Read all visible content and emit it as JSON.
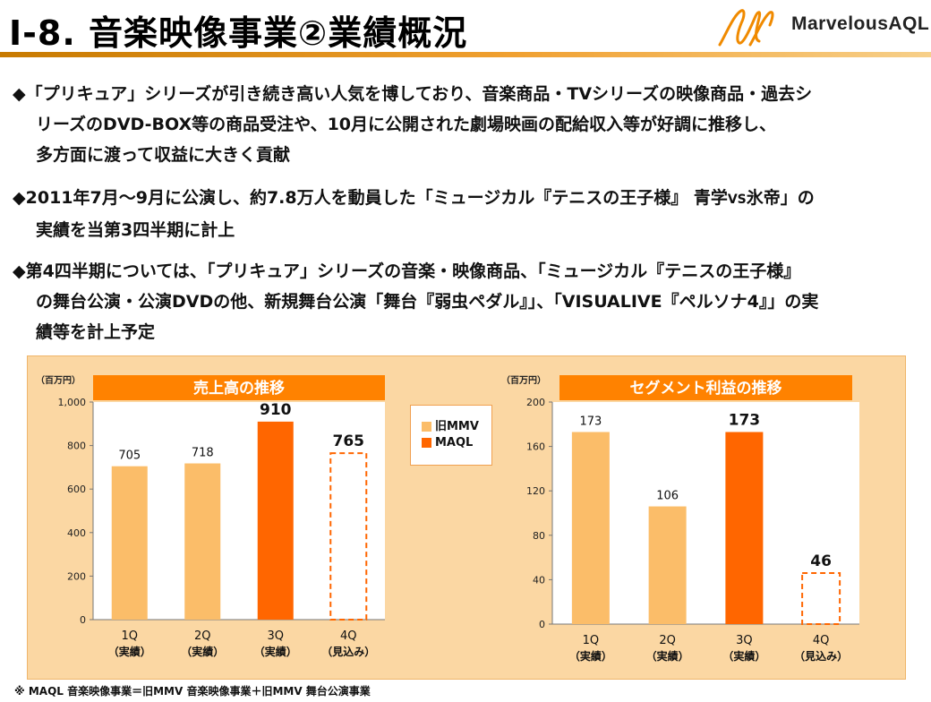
{
  "header": {
    "title": "Ⅰ-8. 音楽映像事業②業績概況",
    "logo_text": "MarvelousAQL"
  },
  "bullets": [
    {
      "marker": "◆",
      "lines": [
        "「プリキュア」シリーズが引き続き高い人気を博しており、音楽商品・TVシリーズの映像商品・過去シ",
        "リーズのDVD-BOX等の商品受注や、10月に公開された劇場映画の配給収入等が好調に推移し、",
        "多方面に渡って収益に大きく貢献"
      ]
    },
    {
      "marker": "◆",
      "line1_a": "2011年7月～9月に公演し、約7.8万人を動員した「ミュージカル『テニスの王子様』 青学",
      "line1_vs": "VS",
      "line1_b": "氷帝」の",
      "lines_rest": [
        "実績を当第3四半期に計上"
      ]
    },
    {
      "marker": "◆",
      "lines": [
        "第4四半期については、「プリキュア」シリーズの音楽・映像商品、「ミュージカル『テニスの王子様』",
        "の舞台公演・公演DVDの他、新規舞台公演「舞台『弱虫ペダル』」、「VISUALIVE『ペルソナ4』」の実",
        "績等を計上予定"
      ]
    }
  ],
  "legend": {
    "items": [
      {
        "label": "旧MMV",
        "color": "#fbbd69"
      },
      {
        "label": "MAQL",
        "color": "#ff6600"
      }
    ]
  },
  "footnote": "※ MAQL 音楽映像事業＝旧MMV 音楽映像事業＋旧MMV 舞台公演事業",
  "colors": {
    "panel_bg": "#fbd7a3",
    "plot_bg": "#ffffff",
    "old_mmv": "#fbbd69",
    "maql": "#ff6600",
    "forecast_border": "#ff6600",
    "header_bg": "#ff8200"
  },
  "chart_data": [
    {
      "type": "bar",
      "title": "売上高の推移",
      "unit_label": "（百万円）",
      "categories": [
        "1Q",
        "2Q",
        "3Q",
        "4Q"
      ],
      "category_sublabels": [
        "（実績）",
        "（実績）",
        "（実績）",
        "（見込み）"
      ],
      "values": [
        705,
        718,
        910,
        765
      ],
      "value_labels": [
        "705",
        "718",
        "910",
        "765"
      ],
      "series_of_bar": [
        "旧MMV",
        "旧MMV",
        "MAQL",
        "MAQL"
      ],
      "forecast": [
        false,
        false,
        false,
        true
      ],
      "ylim": [
        0,
        1000
      ],
      "yticks": [
        0,
        200,
        400,
        600,
        800,
        1000
      ],
      "ytick_labels": [
        "0",
        "200",
        "400",
        "600",
        "800",
        "1,000"
      ],
      "legend_placement": "right"
    },
    {
      "type": "bar",
      "title": "セグメント利益の推移",
      "unit_label": "（百万円）",
      "categories": [
        "1Q",
        "2Q",
        "3Q",
        "4Q"
      ],
      "category_sublabels": [
        "（実績）",
        "（実績）",
        "（実績）",
        "（見込み）"
      ],
      "values": [
        173,
        106,
        173,
        46
      ],
      "value_labels": [
        "173",
        "106",
        "173",
        "46"
      ],
      "series_of_bar": [
        "旧MMV",
        "旧MMV",
        "MAQL",
        "MAQL"
      ],
      "forecast": [
        false,
        false,
        false,
        true
      ],
      "ylim": [
        0,
        200
      ],
      "yticks": [
        0,
        40,
        80,
        120,
        160,
        200
      ],
      "ytick_labels": [
        "0",
        "40",
        "80",
        "120",
        "160",
        "200"
      ]
    }
  ]
}
